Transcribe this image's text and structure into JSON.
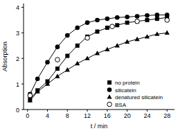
{
  "chart_data": {
    "type": "line",
    "x_label": "t / min",
    "y_label": "Absorption",
    "xlim": [
      -0.8,
      29.5
    ],
    "ylim": [
      0,
      4.15
    ],
    "xticks": [
      0,
      4,
      8,
      12,
      16,
      20,
      24,
      28
    ],
    "yticks": [
      0,
      1,
      2,
      3,
      4
    ],
    "legend": "lower right",
    "grid": false,
    "series": [
      {
        "name": "no protein",
        "color": "#000000",
        "marker": "square",
        "line_style": "solid",
        "x": [
          0.5,
          2,
          4,
          6,
          8,
          10,
          12,
          14,
          16,
          18,
          20,
          22,
          24,
          26,
          28
        ],
        "values": [
          0.4,
          0.75,
          1.1,
          1.6,
          2.1,
          2.5,
          2.85,
          3.05,
          3.2,
          3.3,
          3.4,
          3.45,
          3.5,
          3.55,
          3.6
        ]
      },
      {
        "name": "silicatein",
        "color": "#000000",
        "marker": "circle",
        "line_style": "solid",
        "x": [
          0.5,
          2,
          4,
          6,
          8,
          10,
          12,
          14,
          16,
          18,
          20,
          22,
          24,
          26,
          28
        ],
        "values": [
          0.6,
          1.2,
          1.85,
          2.45,
          2.9,
          3.2,
          3.4,
          3.5,
          3.55,
          3.6,
          3.62,
          3.65,
          3.68,
          3.7,
          3.7
        ]
      },
      {
        "name": "denatured silicatein",
        "color": "#000000",
        "marker": "triangle",
        "line_style": "solid",
        "x": [
          0.5,
          2,
          4,
          6,
          8,
          10,
          12,
          14,
          16,
          18,
          20,
          22,
          24,
          26,
          28
        ],
        "values": [
          0.35,
          0.7,
          1.0,
          1.3,
          1.55,
          1.8,
          2.0,
          2.2,
          2.35,
          2.5,
          2.65,
          2.75,
          2.85,
          2.95,
          3.0
        ]
      },
      {
        "name": "BSA",
        "color": "#000000",
        "marker": "open-circle",
        "line_style": "none",
        "x": [
          0.5,
          6,
          12,
          17,
          22,
          28
        ],
        "values": [
          0.55,
          1.95,
          2.8,
          3.25,
          3.45,
          3.5
        ]
      }
    ]
  }
}
